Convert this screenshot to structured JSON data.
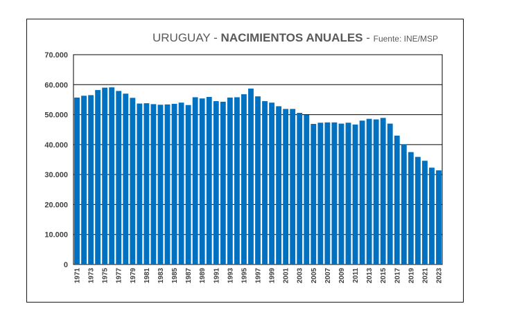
{
  "chart_data": {
    "type": "bar",
    "title_parts": {
      "prefix": "URUGUAY - ",
      "bold": "NACIMIENTOS ANUALES",
      "separator": " - ",
      "source": "Fuente: INE/MSP"
    },
    "xlabel": "",
    "ylabel": "",
    "ylim": [
      0,
      70000
    ],
    "y_ticks": [
      0,
      10000,
      20000,
      30000,
      40000,
      50000,
      60000,
      70000
    ],
    "y_tick_labels": [
      "0",
      "10.000",
      "20.000",
      "30.000",
      "40.000",
      "50.000",
      "60.000",
      "70.000"
    ],
    "grid": "horizontal",
    "bar_color": "#0070C0",
    "categories": [
      "1971",
      "1972",
      "1973",
      "1974",
      "1975",
      "1976",
      "1977",
      "1978",
      "1979",
      "1980",
      "1981",
      "1982",
      "1983",
      "1984",
      "1985",
      "1986",
      "1987",
      "1988",
      "1989",
      "1990",
      "1991",
      "1992",
      "1993",
      "1994",
      "1995",
      "1996",
      "1997",
      "1998",
      "1999",
      "2000",
      "2001",
      "2002",
      "2003",
      "2004",
      "2005",
      "2006",
      "2007",
      "2008",
      "2009",
      "2010",
      "2011",
      "2012",
      "2013",
      "2014",
      "2015",
      "2016",
      "2017",
      "2018",
      "2019",
      "2020",
      "2021",
      "2022",
      "2023"
    ],
    "x_tick_labels": [
      "1971",
      "1973",
      "1975",
      "1977",
      "1979",
      "1981",
      "1983",
      "1985",
      "1987",
      "1989",
      "1991",
      "1993",
      "1995",
      "1997",
      "1999",
      "2001",
      "2003",
      "2005",
      "2007",
      "2009",
      "2011",
      "2013",
      "2015",
      "2017",
      "2019",
      "2021",
      "2023"
    ],
    "values": [
      55700,
      56300,
      56500,
      58200,
      59000,
      59100,
      57900,
      57000,
      55600,
      53700,
      53800,
      53500,
      53300,
      53400,
      53600,
      54000,
      53200,
      55800,
      55400,
      55900,
      54500,
      54300,
      55700,
      55800,
      56800,
      58700,
      56100,
      54500,
      54000,
      52800,
      51900,
      51900,
      50600,
      49900,
      46900,
      47300,
      47400,
      47400,
      47000,
      47300,
      46700,
      48000,
      48600,
      48400,
      48900,
      47000,
      43000,
      40100,
      37500,
      35900,
      34600,
      32300,
      31400
    ]
  }
}
